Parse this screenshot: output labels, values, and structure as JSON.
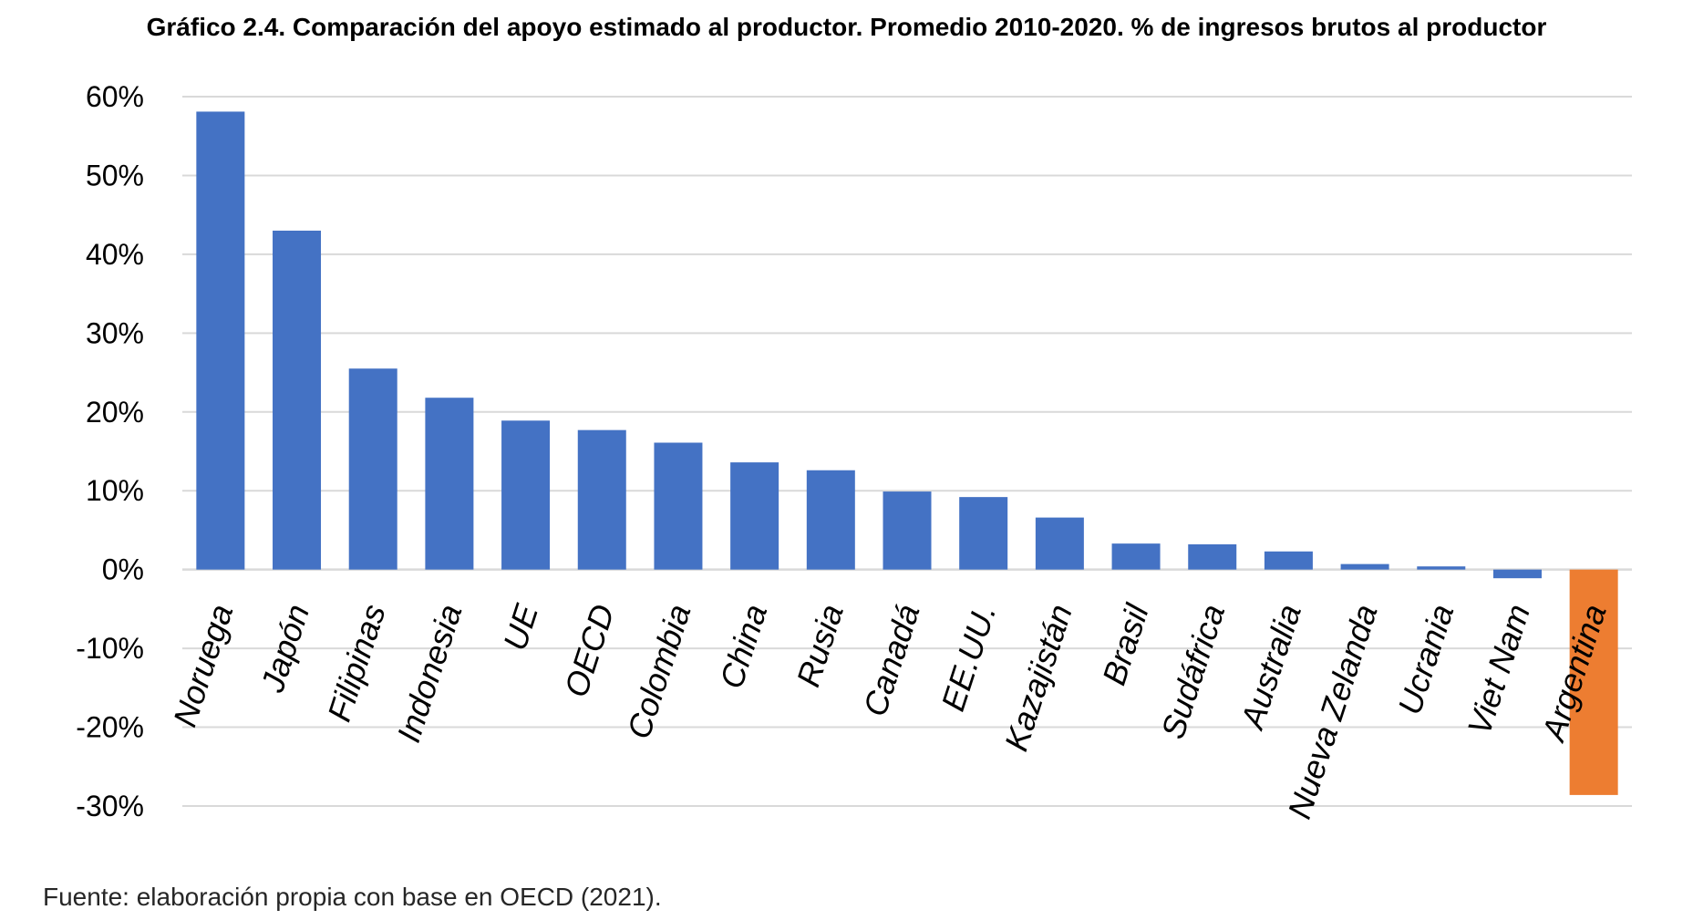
{
  "title": "Gráfico 2.4. Comparación del apoyo estimado al productor. Promedio 2010-2020. % de ingresos brutos al productor",
  "source": "Fuente: elaboración propia con base en OECD (2021).",
  "colors": {
    "bar": "#4472C4",
    "highlight": "#ED7D31",
    "grid": "#D9D9D9"
  },
  "chart_data": {
    "type": "bar",
    "title": "Gráfico 2.4. Comparación del apoyo estimado al productor. Promedio 2010-2020. % de ingresos brutos al productor",
    "xlabel": "",
    "ylabel": "",
    "ylim": [
      -30,
      60
    ],
    "yticks": [
      60,
      50,
      40,
      30,
      20,
      10,
      0,
      -10,
      -20,
      -30
    ],
    "ytick_labels": [
      "60%",
      "50%",
      "40%",
      "30%",
      "20%",
      "10%",
      "0%",
      "-10%",
      "-20%",
      "-30%"
    ],
    "grid": true,
    "legend": "none",
    "highlight_category": "Argentina",
    "categories": [
      "Noruega",
      "Japón",
      "Filipinas",
      "Indonesia",
      "UE",
      "OECD",
      "Colombia",
      "China",
      "Rusia",
      "Canadá",
      "EE.UU.",
      "Kazajistán",
      "Brasil",
      "Sudáfrica",
      "Australia",
      "Nueva Zelanda",
      "Ucrania",
      "Viet Nam",
      "Argentina"
    ],
    "values": [
      58.1,
      43.0,
      25.5,
      21.8,
      18.9,
      17.7,
      16.1,
      13.6,
      12.6,
      9.9,
      9.2,
      6.6,
      3.3,
      3.2,
      2.3,
      0.7,
      0.4,
      -1.1,
      -28.6
    ]
  }
}
